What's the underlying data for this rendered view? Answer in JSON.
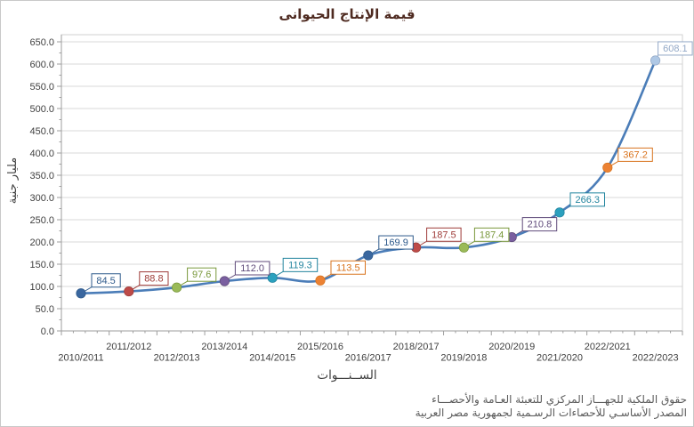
{
  "window": {
    "background": "#ffffff",
    "border_color": "#c9c9c9"
  },
  "title": {
    "text": "قيمة الإنتاج الحيوانى",
    "color": "#4e2a20"
  },
  "footer": {
    "line1": "حقوق الملكية للجهـــاز المركزي للتعبئة العـامة والأحصـــاء",
    "line2": "المصدر الأساسـي للأحصاءات الرسـمية لجمهورية مصر العربية"
  },
  "chart_data": {
    "type": "line",
    "title": "قيمة الإنتاج الحيوانى",
    "xlabel": "الســنـــوات",
    "ylabel": "مليار جنية",
    "categories": [
      "2010/2011",
      "2011/2012",
      "2012/2013",
      "2013/2014",
      "2014/2015",
      "2015/2016",
      "2016/2017",
      "2018/2017",
      "2019/2018",
      "2020/2019",
      "2021/2020",
      "2022/2021",
      "2022/2023"
    ],
    "values": [
      84.5,
      88.8,
      97.6,
      112.0,
      119.3,
      113.5,
      169.9,
      187.5,
      187.4,
      210.8,
      266.3,
      367.2,
      608.1
    ],
    "ylim": [
      0,
      650
    ],
    "ytick_step": 50,
    "ytick_decimals": 1,
    "grid": true,
    "legend": "none",
    "smooth": true,
    "line_color": "#4b7db8",
    "grid_color": "#d8d8d8",
    "plot_border_color": "#d2d2d2",
    "axis_color": "#9e9e9e",
    "tick_label_color": "#3f3f3f",
    "point_colors": [
      "#3a679f",
      "#be4b48",
      "#9aba58",
      "#7a5fa0",
      "#2ba0be",
      "#ec8234",
      "#3a679f",
      "#be4b48",
      "#9aba58",
      "#7a5fa0",
      "#2ba0be",
      "#ec8234",
      "#afc8e5"
    ],
    "label_colors": [
      "#2e5a8b",
      "#9e3b38",
      "#79983b",
      "#5f4a7a",
      "#21849e",
      "#d9731d",
      "#2e5a8b",
      "#9e3b38",
      "#79983b",
      "#5f4a7a",
      "#21849e",
      "#d9731d",
      "#93a9c7"
    ]
  }
}
